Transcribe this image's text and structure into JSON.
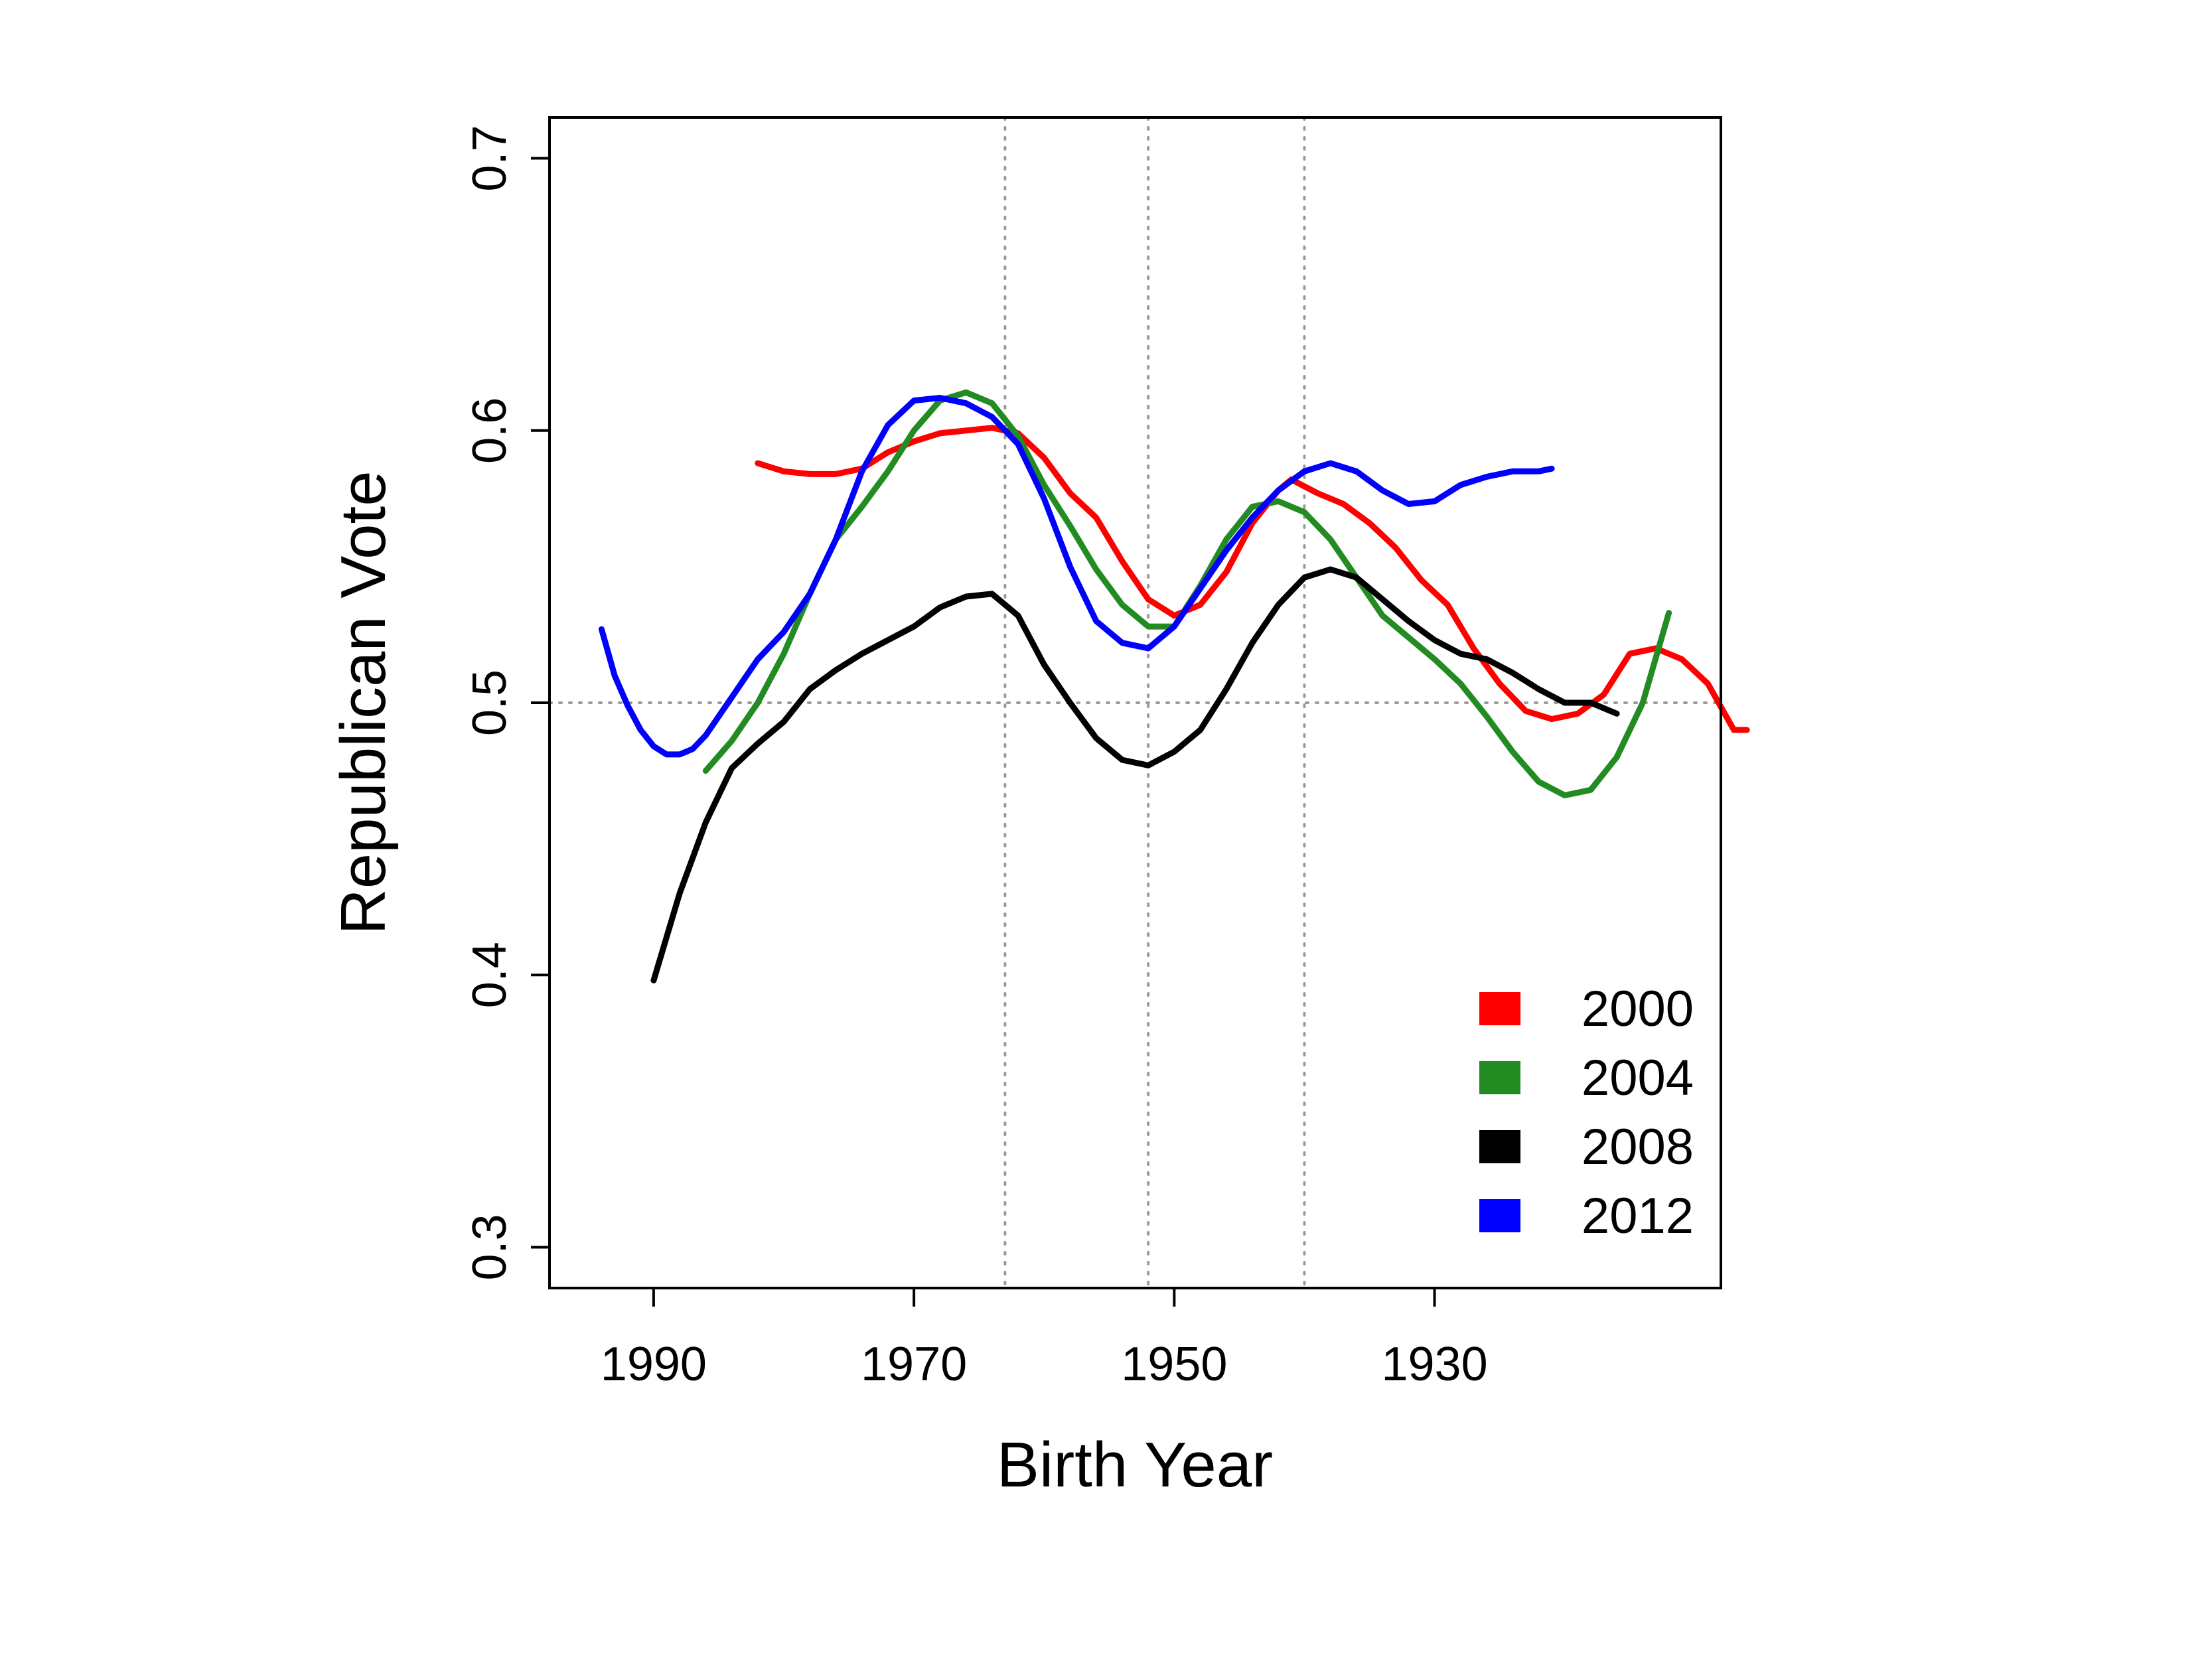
{
  "chart_data": {
    "type": "line",
    "title": "",
    "xlabel": "Birth Year",
    "ylabel": "Republican Vote",
    "x_reversed": true,
    "xlim": [
      1998,
      1908
    ],
    "ylim": [
      0.285,
      0.715
    ],
    "x_ticks": [
      "1990",
      "1970",
      "1950",
      "1930"
    ],
    "y_ticks": [
      "0.3",
      "0.4",
      "0.5",
      "0.6",
      "0.7"
    ],
    "reference_lines": {
      "x": [
        1963,
        1952,
        1940
      ],
      "y": [
        0.5
      ]
    },
    "legend_position": "bottom-right",
    "series": [
      {
        "name": "2000",
        "color": "#ff0000",
        "points": [
          [
            1982,
            0.588
          ],
          [
            1980,
            0.585
          ],
          [
            1978,
            0.584
          ],
          [
            1976,
            0.584
          ],
          [
            1974,
            0.586
          ],
          [
            1972,
            0.592
          ],
          [
            1970,
            0.596
          ],
          [
            1968,
            0.599
          ],
          [
            1966,
            0.6
          ],
          [
            1964,
            0.601
          ],
          [
            1962,
            0.599
          ],
          [
            1960,
            0.59
          ],
          [
            1958,
            0.577
          ],
          [
            1956,
            0.568
          ],
          [
            1954,
            0.552
          ],
          [
            1952,
            0.538
          ],
          [
            1950,
            0.532
          ],
          [
            1948,
            0.536
          ],
          [
            1946,
            0.548
          ],
          [
            1944,
            0.566
          ],
          [
            1942,
            0.578
          ],
          [
            1941,
            0.582
          ],
          [
            1939,
            0.577
          ],
          [
            1937,
            0.573
          ],
          [
            1935,
            0.566
          ],
          [
            1933,
            0.557
          ],
          [
            1931,
            0.545
          ],
          [
            1929,
            0.536
          ],
          [
            1927,
            0.52
          ],
          [
            1925,
            0.507
          ],
          [
            1923,
            0.497
          ],
          [
            1921,
            0.494
          ],
          [
            1919,
            0.496
          ],
          [
            1917,
            0.503
          ],
          [
            1915,
            0.518
          ],
          [
            1913,
            0.52
          ],
          [
            1911,
            0.516
          ],
          [
            1909,
            0.507
          ],
          [
            1907,
            0.49
          ],
          [
            1906,
            0.49
          ]
        ]
      },
      {
        "name": "2004",
        "color": "#228b22",
        "points": [
          [
            1986,
            0.475
          ],
          [
            1984,
            0.486
          ],
          [
            1982,
            0.5
          ],
          [
            1980,
            0.518
          ],
          [
            1978,
            0.54
          ],
          [
            1976,
            0.56
          ],
          [
            1974,
            0.572
          ],
          [
            1972,
            0.585
          ],
          [
            1970,
            0.6
          ],
          [
            1968,
            0.611
          ],
          [
            1966,
            0.614
          ],
          [
            1964,
            0.61
          ],
          [
            1962,
            0.598
          ],
          [
            1960,
            0.58
          ],
          [
            1958,
            0.565
          ],
          [
            1956,
            0.549
          ],
          [
            1954,
            0.536
          ],
          [
            1952,
            0.528
          ],
          [
            1950,
            0.528
          ],
          [
            1948,
            0.543
          ],
          [
            1946,
            0.56
          ],
          [
            1944,
            0.572
          ],
          [
            1942,
            0.574
          ],
          [
            1940,
            0.57
          ],
          [
            1938,
            0.56
          ],
          [
            1936,
            0.546
          ],
          [
            1934,
            0.532
          ],
          [
            1932,
            0.524
          ],
          [
            1930,
            0.516
          ],
          [
            1928,
            0.507
          ],
          [
            1926,
            0.495
          ],
          [
            1924,
            0.482
          ],
          [
            1922,
            0.471
          ],
          [
            1920,
            0.466
          ],
          [
            1918,
            0.468
          ],
          [
            1916,
            0.48
          ],
          [
            1914,
            0.5
          ],
          [
            1912,
            0.533
          ]
        ]
      },
      {
        "name": "2008",
        "color": "#000000",
        "points": [
          [
            1990,
            0.398
          ],
          [
            1988,
            0.43
          ],
          [
            1986,
            0.456
          ],
          [
            1984,
            0.476
          ],
          [
            1982,
            0.485
          ],
          [
            1980,
            0.493
          ],
          [
            1978,
            0.505
          ],
          [
            1976,
            0.512
          ],
          [
            1974,
            0.518
          ],
          [
            1972,
            0.523
          ],
          [
            1970,
            0.528
          ],
          [
            1968,
            0.535
          ],
          [
            1966,
            0.539
          ],
          [
            1964,
            0.54
          ],
          [
            1962,
            0.532
          ],
          [
            1960,
            0.514
          ],
          [
            1958,
            0.5
          ],
          [
            1956,
            0.487
          ],
          [
            1954,
            0.479
          ],
          [
            1952,
            0.477
          ],
          [
            1950,
            0.482
          ],
          [
            1948,
            0.49
          ],
          [
            1946,
            0.505
          ],
          [
            1944,
            0.522
          ],
          [
            1942,
            0.536
          ],
          [
            1940,
            0.546
          ],
          [
            1938,
            0.549
          ],
          [
            1936,
            0.546
          ],
          [
            1934,
            0.538
          ],
          [
            1932,
            0.53
          ],
          [
            1930,
            0.523
          ],
          [
            1928,
            0.518
          ],
          [
            1926,
            0.516
          ],
          [
            1924,
            0.511
          ],
          [
            1922,
            0.505
          ],
          [
            1920,
            0.5
          ],
          [
            1918,
            0.5
          ],
          [
            1916,
            0.496
          ]
        ]
      },
      {
        "name": "2012",
        "color": "#0000ff",
        "points": [
          [
            1994,
            0.527
          ],
          [
            1993,
            0.51
          ],
          [
            1992,
            0.499
          ],
          [
            1991,
            0.49
          ],
          [
            1990,
            0.484
          ],
          [
            1989,
            0.481
          ],
          [
            1988,
            0.481
          ],
          [
            1987,
            0.483
          ],
          [
            1986,
            0.488
          ],
          [
            1984,
            0.502
          ],
          [
            1982,
            0.516
          ],
          [
            1980,
            0.526
          ],
          [
            1978,
            0.54
          ],
          [
            1976,
            0.56
          ],
          [
            1974,
            0.585
          ],
          [
            1972,
            0.602
          ],
          [
            1970,
            0.611
          ],
          [
            1968,
            0.612
          ],
          [
            1966,
            0.61
          ],
          [
            1964,
            0.605
          ],
          [
            1962,
            0.595
          ],
          [
            1960,
            0.575
          ],
          [
            1958,
            0.55
          ],
          [
            1956,
            0.53
          ],
          [
            1954,
            0.522
          ],
          [
            1952,
            0.52
          ],
          [
            1950,
            0.528
          ],
          [
            1948,
            0.542
          ],
          [
            1946,
            0.556
          ],
          [
            1944,
            0.568
          ],
          [
            1942,
            0.578
          ],
          [
            1940,
            0.585
          ],
          [
            1938,
            0.588
          ],
          [
            1936,
            0.585
          ],
          [
            1934,
            0.578
          ],
          [
            1932,
            0.573
          ],
          [
            1930,
            0.574
          ],
          [
            1928,
            0.58
          ],
          [
            1926,
            0.583
          ],
          [
            1924,
            0.585
          ],
          [
            1922,
            0.585
          ],
          [
            1921,
            0.586
          ]
        ]
      }
    ]
  }
}
